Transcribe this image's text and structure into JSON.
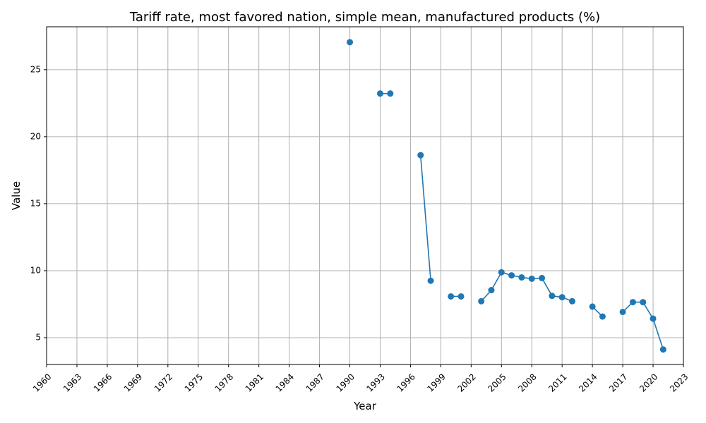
{
  "chart_data": {
    "type": "line",
    "title": "Tariff rate, most favored nation, simple mean, manufactured products (%)",
    "xlabel": "Year",
    "ylabel": "Value",
    "xlim": [
      1960,
      2023
    ],
    "ylim": [
      3.0,
      28.2
    ],
    "xticks": [
      1960,
      1963,
      1966,
      1969,
      1972,
      1975,
      1978,
      1981,
      1984,
      1987,
      1990,
      1993,
      1996,
      1999,
      2002,
      2005,
      2008,
      2011,
      2014,
      2017,
      2020,
      2023
    ],
    "yticks": [
      5,
      10,
      15,
      20,
      25
    ],
    "grid": true,
    "legend": "none",
    "color": "#1f77b4",
    "series": [
      {
        "x": [
          1990,
          1993,
          1994,
          1997,
          1998,
          2000,
          2001,
          2003,
          2004,
          2005,
          2006,
          2007,
          2008,
          2009,
          2010,
          2011,
          2012,
          2014,
          2015,
          2017,
          2018,
          2019,
          2020,
          2021
        ],
        "values": [
          27.05,
          23.22,
          23.22,
          18.62,
          9.25,
          8.08,
          8.08,
          7.72,
          8.55,
          9.88,
          9.65,
          9.5,
          9.4,
          9.45,
          8.12,
          8.02,
          7.72,
          7.32,
          6.58,
          6.92,
          7.65,
          7.65,
          6.42,
          4.12
        ]
      }
    ]
  }
}
